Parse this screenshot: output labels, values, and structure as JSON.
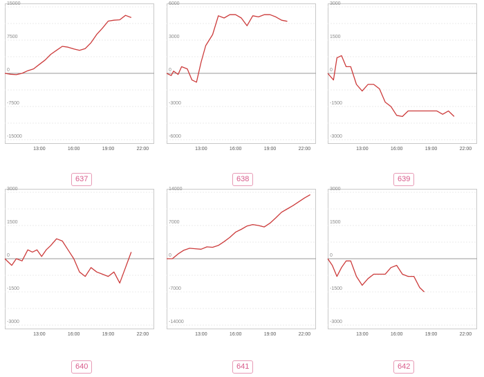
{
  "colors": {
    "series": "#cc3a3a",
    "badge": "#d85a8a",
    "badge_border": "#e79ab5",
    "frame": "#c8c8c8"
  },
  "chart_data": [
    {
      "type": "line",
      "label": "637",
      "ylim": [
        -15000,
        15000
      ],
      "yticks": [
        15000,
        7500,
        0,
        -7500,
        -15000
      ],
      "xlim": [
        10.0,
        23.0
      ],
      "xticks": [
        "13:00",
        "16:00",
        "19:00",
        "22:00"
      ],
      "series": [
        {
          "x": [
            10.0,
            10.5,
            11.0,
            11.5,
            12.0,
            12.5,
            13.0,
            13.5,
            14.0,
            14.5,
            15.0,
            15.5,
            16.0,
            16.5,
            17.0,
            17.5,
            18.0,
            18.5,
            19.0,
            19.5,
            20.0,
            20.5,
            21.0
          ],
          "y": [
            0,
            -200,
            -300,
            0,
            600,
            1000,
            2000,
            3000,
            4300,
            5200,
            6100,
            5900,
            5500,
            5200,
            5600,
            6900,
            8800,
            10200,
            11800,
            12000,
            12100,
            13100,
            12600
          ]
        }
      ]
    },
    {
      "type": "line",
      "label": "638",
      "ylim": [
        -6000,
        6000
      ],
      "yticks": [
        6000,
        3000,
        0,
        -3000,
        -6000
      ],
      "xlim": [
        10.0,
        23.0
      ],
      "xticks": [
        "13:00",
        "16:00",
        "19:00",
        "22:00"
      ],
      "series": [
        {
          "x": [
            10.0,
            10.4,
            10.6,
            11.0,
            11.3,
            11.8,
            12.2,
            12.6,
            13.0,
            13.4,
            14.0,
            14.5,
            15.0,
            15.5,
            16.0,
            16.5,
            17.0,
            17.5,
            18.0,
            18.5,
            19.0,
            19.5,
            20.0,
            20.5
          ],
          "y": [
            0,
            -200,
            200,
            -100,
            600,
            400,
            -600,
            -800,
            1000,
            2500,
            3500,
            5200,
            5000,
            5300,
            5300,
            5000,
            4300,
            5200,
            5100,
            5300,
            5300,
            5100,
            4800,
            4700
          ]
        }
      ]
    },
    {
      "type": "line",
      "label": "639",
      "ylim": [
        -3000,
        3000
      ],
      "yticks": [
        3000,
        1500,
        0,
        -1500,
        -3000
      ],
      "xlim": [
        10.0,
        23.0
      ],
      "xticks": [
        "13:00",
        "16:00",
        "19:00",
        "22:00"
      ],
      "series": [
        {
          "x": [
            10.0,
            10.5,
            10.8,
            11.2,
            11.6,
            12.0,
            12.5,
            13.0,
            13.5,
            14.0,
            14.5,
            15.0,
            15.5,
            16.0,
            16.5,
            17.0,
            17.5,
            18.0,
            18.5,
            19.0,
            19.5,
            20.0,
            20.5,
            21.0
          ],
          "y": [
            0,
            -300,
            700,
            800,
            300,
            300,
            -500,
            -800,
            -500,
            -500,
            -700,
            -1300,
            -1500,
            -1900,
            -1950,
            -1700,
            -1700,
            -1700,
            -1700,
            -1700,
            -1700,
            -1850,
            -1700,
            -1950
          ]
        }
      ]
    },
    {
      "type": "line",
      "label": "640",
      "ylim": [
        -3000,
        3000
      ],
      "yticks": [
        3000,
        1500,
        0,
        -1500,
        -3000
      ],
      "xlim": [
        10.0,
        23.0
      ],
      "xticks": [
        "13:00",
        "16:00",
        "19:00",
        "22:00"
      ],
      "series": [
        {
          "x": [
            10.0,
            10.4,
            10.6,
            11.0,
            11.5,
            12.0,
            12.4,
            12.8,
            13.2,
            13.6,
            14.0,
            14.5,
            15.0,
            15.5,
            16.0,
            16.5,
            17.0,
            17.5,
            18.0,
            18.5,
            19.0,
            19.5,
            20.0,
            20.5,
            21.0
          ],
          "y": [
            0,
            -200,
            -300,
            0,
            -100,
            400,
            300,
            400,
            100,
            400,
            600,
            900,
            800,
            400,
            0,
            -600,
            -800,
            -400,
            -600,
            -700,
            -800,
            -600,
            -1100,
            -400,
            300
          ]
        }
      ]
    },
    {
      "type": "line",
      "label": "641",
      "ylim": [
        -14000,
        14000
      ],
      "yticks": [
        14000,
        7000,
        0,
        -7000,
        -14000
      ],
      "xlim": [
        10.0,
        23.0
      ],
      "xticks": [
        "13:00",
        "16:00",
        "19:00",
        "22:00"
      ],
      "series": [
        {
          "x": [
            10.0,
            10.5,
            11.0,
            11.5,
            12.0,
            12.5,
            13.0,
            13.5,
            14.0,
            14.5,
            15.0,
            15.5,
            16.0,
            16.5,
            17.0,
            17.5,
            18.0,
            18.5,
            19.0,
            19.5,
            20.0,
            20.5,
            21.0,
            21.5,
            22.0,
            22.5
          ],
          "y": [
            0,
            0,
            1000,
            1800,
            2200,
            2100,
            2000,
            2500,
            2400,
            2800,
            3600,
            4500,
            5600,
            6200,
            6900,
            7200,
            7000,
            6700,
            7500,
            8600,
            9800,
            10500,
            11200,
            12000,
            12800,
            13500
          ]
        }
      ]
    },
    {
      "type": "line",
      "label": "642",
      "ylim": [
        -3000,
        3000
      ],
      "yticks": [
        3000,
        1500,
        0,
        -1500,
        -3000
      ],
      "xlim": [
        10.0,
        23.0
      ],
      "xticks": [
        "13:00",
        "16:00",
        "19:00",
        "22:00"
      ],
      "series": [
        {
          "x": [
            10.0,
            10.4,
            10.8,
            11.2,
            11.6,
            12.0,
            12.5,
            13.0,
            13.5,
            14.0,
            14.5,
            15.0,
            15.5,
            16.0,
            16.5,
            17.0,
            17.5,
            18.0,
            18.4
          ],
          "y": [
            0,
            -300,
            -800,
            -400,
            -100,
            -100,
            -800,
            -1200,
            -900,
            -700,
            -700,
            -700,
            -400,
            -300,
            -700,
            -800,
            -800,
            -1300,
            -1500
          ]
        }
      ]
    }
  ]
}
